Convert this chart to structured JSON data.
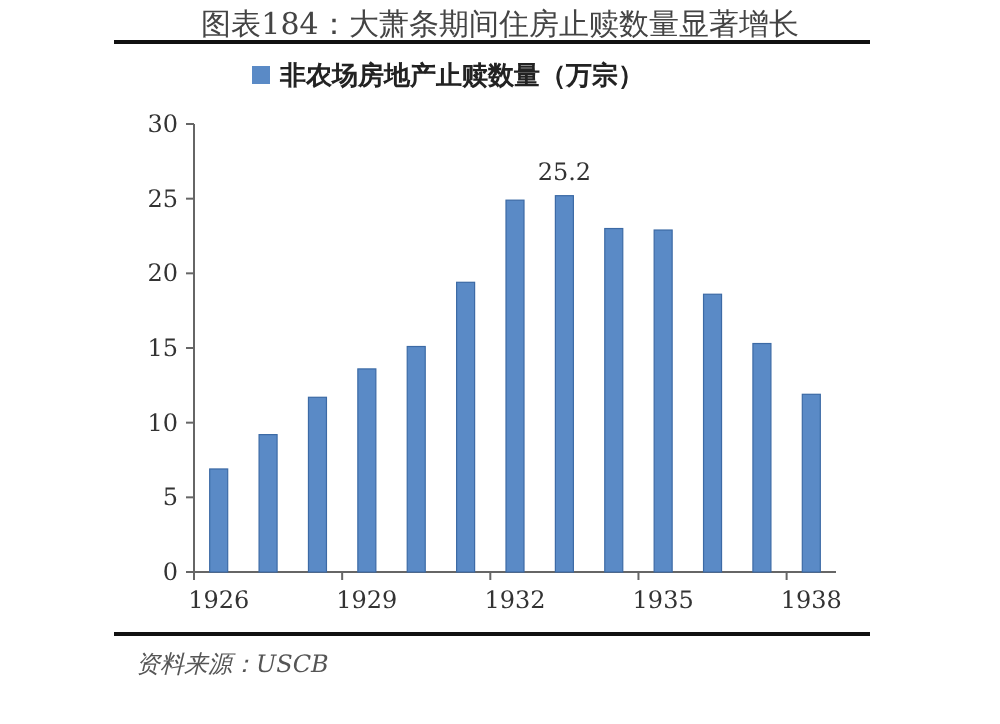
{
  "chart_data": {
    "type": "bar",
    "title": "图表184：大萧条期间住房止赎数量显著增长",
    "categories": [
      "1926",
      null,
      null,
      "1929",
      null,
      null,
      "1932",
      null,
      null,
      "1935",
      null,
      null,
      "1938"
    ],
    "series": [
      {
        "name": "非农场房地产止赎数量（万宗）",
        "color": "#5a8ac6",
        "values": [
          6.9,
          9.2,
          11.7,
          13.6,
          15.1,
          19.4,
          24.9,
          25.2,
          23.0,
          22.9,
          18.6,
          15.3,
          11.9
        ],
        "value_labels": [
          null,
          null,
          null,
          null,
          null,
          null,
          null,
          "25.2",
          null,
          null,
          null,
          null,
          null
        ]
      }
    ],
    "ylim": [
      0,
      30
    ],
    "yticks": [
      0,
      5,
      10,
      15,
      20,
      25,
      30
    ],
    "legend": "top",
    "grid": false,
    "annotations": [
      "资料来源：USCB"
    ]
  }
}
